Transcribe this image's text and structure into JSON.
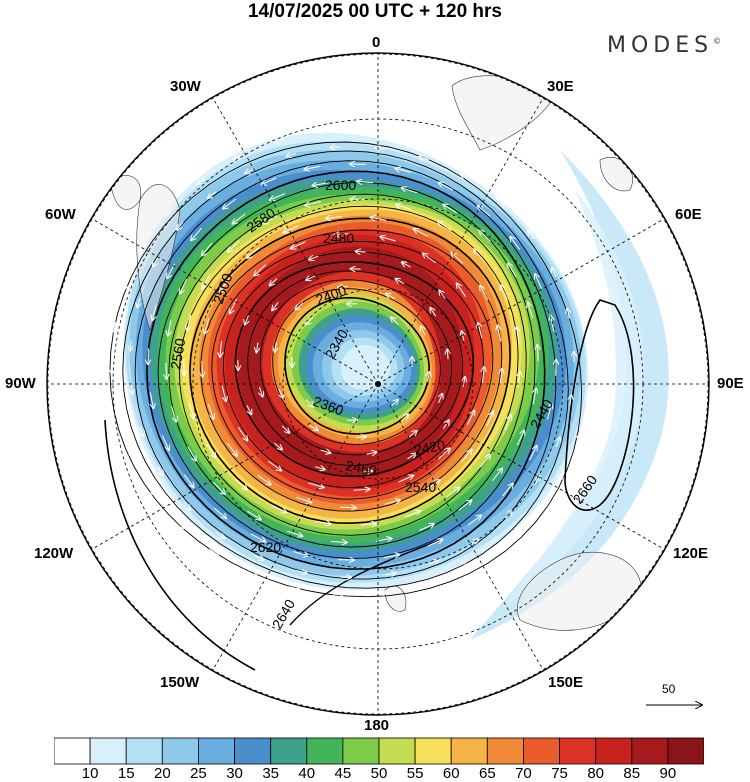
{
  "title": "14/07/2025  00 UTC  + 120 hrs",
  "brand": "MODES",
  "brand_mark": "©",
  "lon_labels": {
    "n0": "0",
    "n30e": "30E",
    "n60e": "60E",
    "n90e": "90E",
    "n120e": "120E",
    "n150e": "150E",
    "n180": "180",
    "n150w": "150W",
    "n120w": "120W",
    "n90w": "90W",
    "n60w": "60W",
    "n30w": "30W"
  },
  "vector_reference": "50",
  "colorbar": {
    "levels": [
      "10",
      "15",
      "20",
      "25",
      "30",
      "35",
      "40",
      "45",
      "50",
      "55",
      "60",
      "65",
      "70",
      "75",
      "80",
      "85",
      "90"
    ],
    "colors": [
      "#ffffff",
      "#d8f0fb",
      "#b3e0f5",
      "#8ec9ec",
      "#6aaee0",
      "#4a8fcc",
      "#3fa08c",
      "#42b55a",
      "#7ccc4a",
      "#c4dc52",
      "#f6e05a",
      "#f6b446",
      "#f08a36",
      "#ea5c2c",
      "#dc3226",
      "#c8221e",
      "#a51a1c",
      "#8a1418"
    ]
  },
  "contour_labels": [
    "2340",
    "2360",
    "2400",
    "2420",
    "2440",
    "2460",
    "2480",
    "2500",
    "2540",
    "2560",
    "2580",
    "2600",
    "2620",
    "2640",
    "2660"
  ]
}
